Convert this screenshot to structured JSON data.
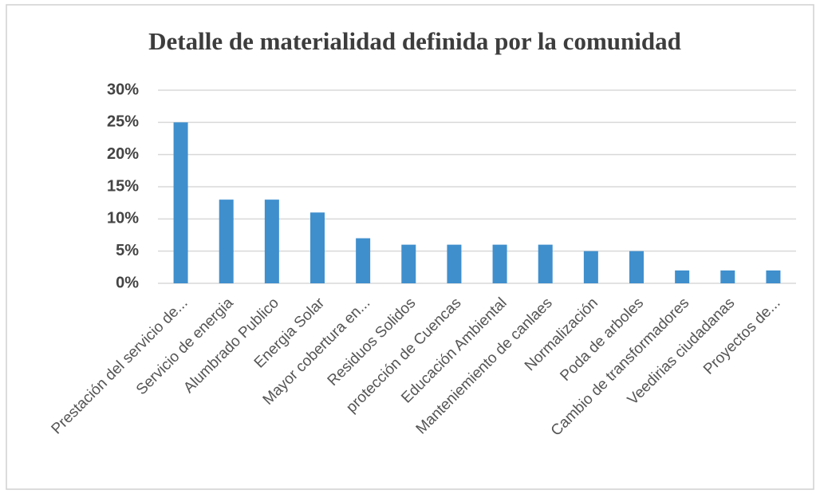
{
  "chart_data": {
    "type": "bar",
    "title": "Detalle de materialidad definida por la comunidad",
    "categories": [
      "Prestación del servicio de...",
      "Servicio de  energia",
      "Alumbrado Publico",
      "Energia Solar",
      "Mayor cobertura en...",
      "Residuos Solidos",
      "protección de Cuencas",
      "Educación Ambiental",
      "Manteniemiento de canlaes",
      "Normalización",
      "Poda de arboles",
      "Cambio de transformadores",
      "Veedirias ciudadanas",
      "Proyectos de..."
    ],
    "values": [
      25,
      13,
      13,
      11,
      7,
      6,
      6,
      6,
      6,
      5,
      5,
      2,
      2,
      2
    ],
    "color": "#3f8fcd",
    "ylim": [
      0,
      30
    ],
    "yticks": [
      {
        "value": 0,
        "label": "0%"
      },
      {
        "value": 5,
        "label": "5%"
      },
      {
        "value": 10,
        "label": "10%"
      },
      {
        "value": 15,
        "label": "15%"
      },
      {
        "value": 20,
        "label": "20%"
      },
      {
        "value": 25,
        "label": "25%"
      },
      {
        "value": 30,
        "label": "30%"
      }
    ],
    "grid": true
  }
}
